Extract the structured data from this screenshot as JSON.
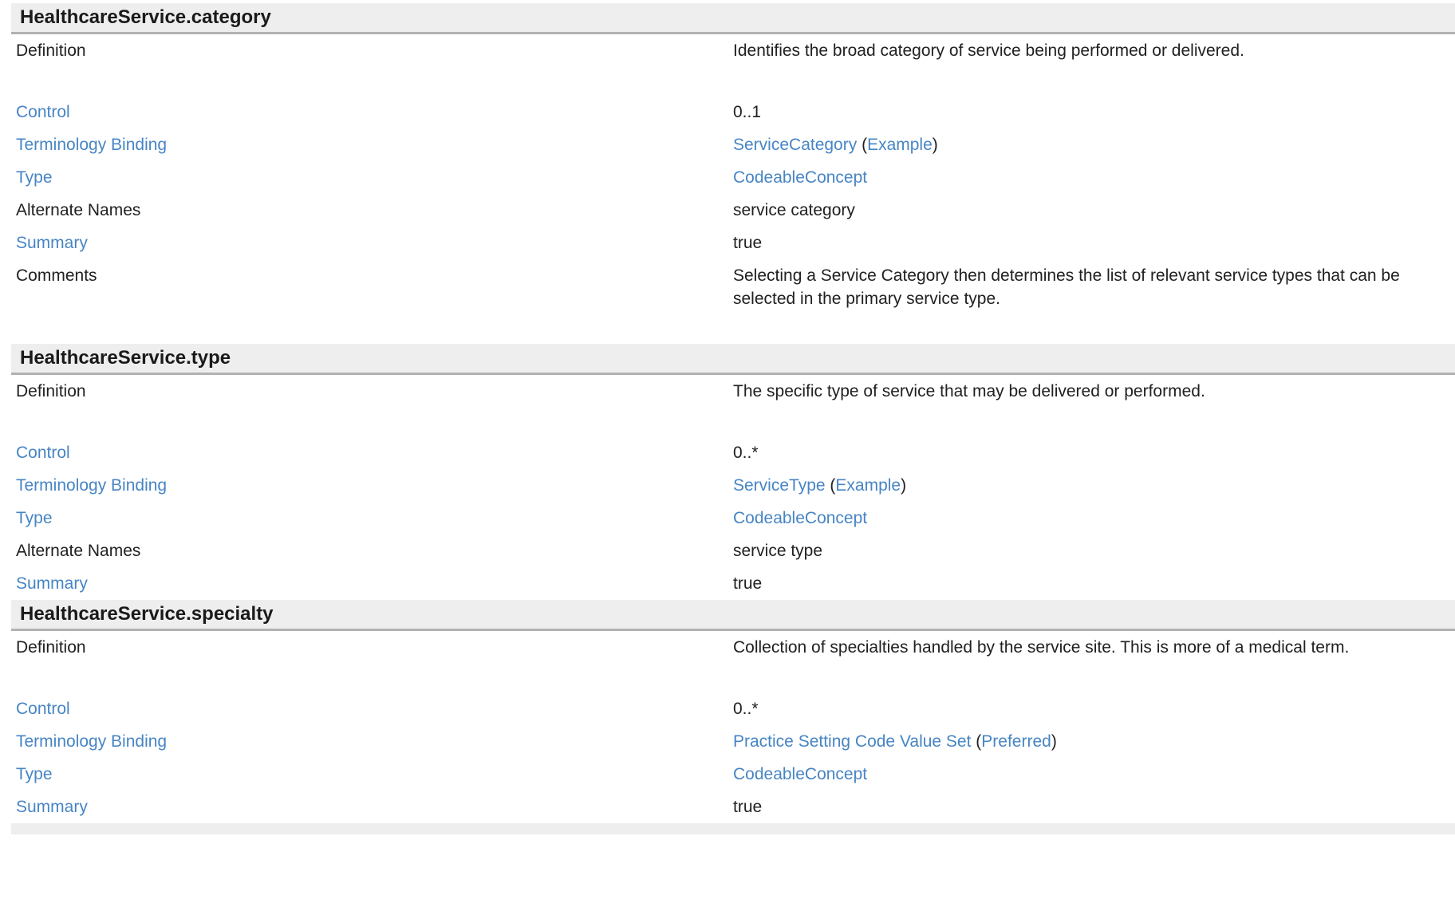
{
  "page": {
    "kind": "resource-definitions-dictionary",
    "colors": {
      "link_blue": "#4785c4",
      "section_header_bg": "#eeeeee",
      "section_header_border": "#b2b2b2",
      "body_text": "#212121"
    },
    "next_section_partial": true
  },
  "sections": [
    {
      "title": "HealthcareService.category",
      "rows": [
        {
          "label": "Definition",
          "label_is_link": false,
          "paragraph": true,
          "value": [
            {
              "text": "Identifies the broad category of service being performed or delivered.",
              "link": false
            }
          ]
        },
        {
          "label": "Control",
          "label_is_link": true,
          "paragraph": false,
          "value": [
            {
              "text": "0..1",
              "link": false
            }
          ]
        },
        {
          "label": "Terminology Binding",
          "label_is_link": true,
          "paragraph": false,
          "value": [
            {
              "text": "ServiceCategory",
              "link": true
            },
            {
              "text": " (",
              "link": false
            },
            {
              "text": "Example",
              "link": true
            },
            {
              "text": ")",
              "link": false
            }
          ]
        },
        {
          "label": "Type",
          "label_is_link": true,
          "paragraph": false,
          "value": [
            {
              "text": "CodeableConcept",
              "link": true
            }
          ]
        },
        {
          "label": "Alternate Names",
          "label_is_link": false,
          "paragraph": false,
          "value": [
            {
              "text": "service category",
              "link": false
            }
          ]
        },
        {
          "label": "Summary",
          "label_is_link": true,
          "paragraph": false,
          "value": [
            {
              "text": "true",
              "link": false
            }
          ]
        },
        {
          "label": "Comments",
          "label_is_link": false,
          "paragraph": true,
          "value": [
            {
              "text": "Selecting a Service Category then determines the list of relevant service types that can be selected in the primary service type.",
              "link": false
            }
          ]
        }
      ]
    },
    {
      "title": "HealthcareService.type",
      "rows": [
        {
          "label": "Definition",
          "label_is_link": false,
          "paragraph": true,
          "value": [
            {
              "text": "The specific type of service that may be delivered or performed.",
              "link": false
            }
          ]
        },
        {
          "label": "Control",
          "label_is_link": true,
          "paragraph": false,
          "value": [
            {
              "text": "0..*",
              "link": false
            }
          ]
        },
        {
          "label": "Terminology Binding",
          "label_is_link": true,
          "paragraph": false,
          "value": [
            {
              "text": "ServiceType",
              "link": true
            },
            {
              "text": " (",
              "link": false
            },
            {
              "text": "Example",
              "link": true
            },
            {
              "text": ")",
              "link": false
            }
          ]
        },
        {
          "label": "Type",
          "label_is_link": true,
          "paragraph": false,
          "value": [
            {
              "text": "CodeableConcept",
              "link": true
            }
          ]
        },
        {
          "label": "Alternate Names",
          "label_is_link": false,
          "paragraph": false,
          "value": [
            {
              "text": "service type",
              "link": false
            }
          ]
        },
        {
          "label": "Summary",
          "label_is_link": true,
          "paragraph": false,
          "value": [
            {
              "text": "true",
              "link": false
            }
          ]
        }
      ]
    },
    {
      "title": "HealthcareService.specialty",
      "rows": [
        {
          "label": "Definition",
          "label_is_link": false,
          "paragraph": true,
          "value": [
            {
              "text": "Collection of specialties handled by the service site. This is more of a medical term.",
              "link": false
            }
          ]
        },
        {
          "label": "Control",
          "label_is_link": true,
          "paragraph": false,
          "value": [
            {
              "text": "0..*",
              "link": false
            }
          ]
        },
        {
          "label": "Terminology Binding",
          "label_is_link": true,
          "paragraph": false,
          "value": [
            {
              "text": "Practice Setting Code Value Set",
              "link": true
            },
            {
              "text": " (",
              "link": false
            },
            {
              "text": "Preferred",
              "link": true
            },
            {
              "text": ")",
              "link": false
            }
          ]
        },
        {
          "label": "Type",
          "label_is_link": true,
          "paragraph": false,
          "value": [
            {
              "text": "CodeableConcept",
              "link": true
            }
          ]
        },
        {
          "label": "Summary",
          "label_is_link": true,
          "paragraph": false,
          "value": [
            {
              "text": "true",
              "link": false
            }
          ]
        }
      ]
    }
  ]
}
